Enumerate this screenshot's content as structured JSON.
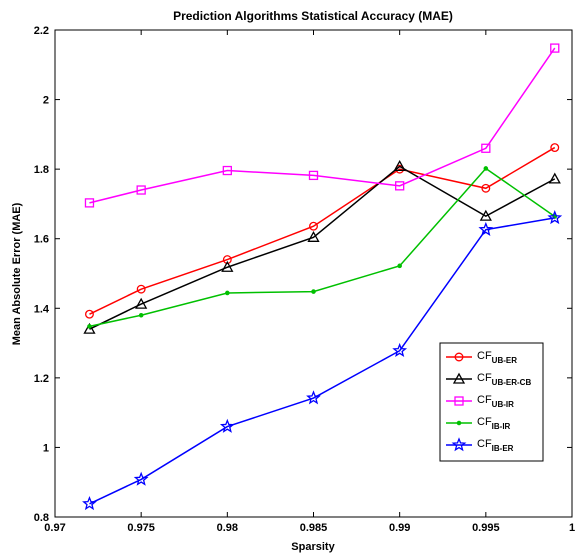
{
  "chart_data": {
    "type": "line",
    "title": "Prediction Algorithms Statistical Accuracy (MAE)",
    "xlabel": "Sparsity",
    "ylabel": "Mean Absolute Error (MAE)",
    "xlim": [
      0.97,
      1.0
    ],
    "ylim": [
      0.8,
      2.2
    ],
    "xticks": [
      "0.97",
      "0.975",
      "0.98",
      "0.985",
      "0.99",
      "0.995",
      "1"
    ],
    "xtick_values": [
      0.97,
      0.975,
      0.98,
      0.985,
      0.99,
      0.995,
      1.0
    ],
    "yticks": [
      "0.8",
      "1",
      "1.2",
      "1.4",
      "1.6",
      "1.8",
      "2",
      "2.2"
    ],
    "ytick_values": [
      0.8,
      1.0,
      1.2,
      1.4,
      1.6,
      1.8,
      2.0,
      2.2
    ],
    "grid": false,
    "legend_position": "lower-right",
    "x": [
      0.972,
      0.975,
      0.98,
      0.985,
      0.99,
      0.995,
      0.999
    ],
    "series": [
      {
        "name": "CF",
        "subscript": "UB-ER",
        "color": "#ff0000",
        "marker": "circle",
        "values": [
          1.383,
          1.455,
          1.54,
          1.636,
          1.8,
          1.745,
          1.862
        ]
      },
      {
        "name": "CF",
        "subscript": "UB-ER-CB",
        "color": "#000000",
        "marker": "triangle",
        "values": [
          1.34,
          1.412,
          1.518,
          1.604,
          1.808,
          1.665,
          1.772
        ]
      },
      {
        "name": "CF",
        "subscript": "UB-IR",
        "color": "#ff00ff",
        "marker": "square",
        "values": [
          1.703,
          1.74,
          1.796,
          1.782,
          1.752,
          1.86,
          2.148
        ]
      },
      {
        "name": "CF",
        "subscript": "IB-IR",
        "color": "#00c000",
        "marker": "dot",
        "values": [
          1.348,
          1.38,
          1.444,
          1.448,
          1.522,
          1.802,
          1.664
        ]
      },
      {
        "name": "CF",
        "subscript": "IB-ER",
        "color": "#0000ff",
        "marker": "star",
        "values": [
          0.838,
          0.908,
          1.06,
          1.142,
          1.278,
          1.626,
          1.66
        ]
      }
    ]
  }
}
